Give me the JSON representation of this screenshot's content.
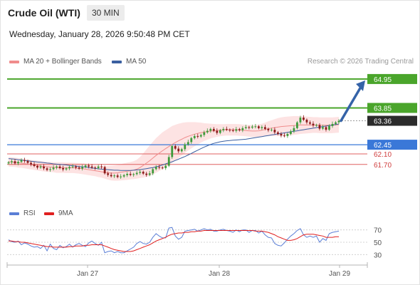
{
  "header": {
    "instrument": "Crude Oil (WTI)",
    "interval": "30 MIN",
    "datetime": "Wednesday, January 28, 2026 9:50:48 PM CET"
  },
  "legend": {
    "ma20_label": "MA 20 + Bollinger Bands",
    "ma50_label": "MA 50",
    "ma20_color": "#f08c8c",
    "ma50_color": "#3a5fa0",
    "source": "Research © 2026 Trading Central"
  },
  "colors": {
    "up_candle": "#3d9a3a",
    "down_candle": "#8b1a1a",
    "bollinger_fill": "#fde3e3",
    "resistance": "#4aa52b",
    "support_blue": "#3a78d8",
    "support_red": "#e06060",
    "arrow": "#3563a8",
    "rsi": "#5b7fd6",
    "rsi_ma": "#e02020"
  },
  "chart_data": [
    {
      "type": "candlestick",
      "ylim": [
        60.5,
        65.3
      ],
      "x_ticks": [
        "Jan 27",
        "Jan 28",
        "Jan 29"
      ],
      "current_price": 63.36,
      "levels": [
        {
          "value": 64.95,
          "label": "64.95",
          "kind": "resistance"
        },
        {
          "value": 63.85,
          "label": "63.85",
          "kind": "resistance"
        },
        {
          "value": 63.36,
          "label": "63.36",
          "kind": "last"
        },
        {
          "value": 62.45,
          "label": "62.45",
          "kind": "support-blue"
        },
        {
          "value": 62.1,
          "label": "62.10",
          "kind": "support-red"
        },
        {
          "value": 61.7,
          "label": "61.70",
          "kind": "support-red"
        }
      ],
      "close": [
        61.78,
        61.82,
        61.74,
        61.8,
        61.86,
        61.83,
        61.76,
        61.7,
        61.64,
        61.58,
        61.62,
        61.55,
        61.49,
        61.52,
        61.58,
        61.62,
        61.56,
        61.51,
        61.55,
        61.6,
        61.62,
        61.58,
        61.54,
        61.6,
        61.66,
        61.62,
        61.58,
        61.56,
        61.62,
        61.6,
        61.36,
        61.3,
        61.25,
        61.28,
        61.22,
        61.24,
        61.29,
        61.34,
        61.3,
        61.33,
        61.38,
        61.42,
        61.35,
        61.3,
        61.36,
        61.52,
        61.6,
        61.58,
        61.56,
        61.65,
        61.98,
        62.4,
        62.3,
        62.2,
        62.28,
        62.46,
        62.55,
        62.7,
        62.78,
        62.76,
        62.82,
        62.92,
        62.98,
        63.05,
        62.98,
        62.9,
        63.0,
        63.05,
        63.02,
        63.0,
        62.98,
        63.04,
        63.0,
        63.08,
        63.12,
        63.1,
        63.14,
        63.15,
        63.08,
        63.12,
        63.05,
        63.0,
        63.02,
        62.92,
        62.86,
        62.8,
        62.78,
        62.86,
        62.96,
        63.08,
        63.3,
        63.48,
        63.4,
        63.3,
        63.25,
        63.18,
        63.2,
        63.06,
        63.12,
        63.02,
        63.16,
        63.24,
        63.3,
        63.36
      ],
      "ma20": [
        61.8,
        61.79,
        61.78,
        61.76,
        61.75,
        61.73,
        61.71,
        61.69,
        61.67,
        61.66,
        61.64,
        61.62,
        61.61,
        61.6,
        61.59,
        61.58,
        61.58,
        61.58,
        61.57,
        61.57,
        61.57,
        61.56,
        61.55,
        61.54,
        61.52,
        61.5,
        61.48,
        61.46,
        61.44,
        61.42,
        61.4,
        61.38,
        61.37,
        61.37,
        61.38,
        61.4,
        61.42,
        61.44,
        61.46,
        61.48,
        61.52,
        61.58,
        61.66,
        61.75,
        61.84,
        61.94,
        62.04,
        62.13,
        62.22,
        62.3,
        62.38,
        62.46,
        62.53,
        62.6,
        62.66,
        62.72,
        62.77,
        62.81,
        62.85,
        62.88,
        62.91,
        62.93,
        62.95,
        62.97,
        62.98,
        62.99,
        63.0,
        63.01,
        63.02,
        63.02,
        63.02,
        63.02,
        63.01,
        63.0,
        62.99,
        62.98,
        62.97,
        62.97,
        62.98,
        63.0,
        63.03,
        63.06,
        63.08,
        63.1,
        63.12,
        63.14,
        63.15,
        63.16,
        63.17,
        63.18,
        63.19,
        63.2,
        63.2,
        63.2,
        63.2,
        63.2,
        63.2,
        63.19,
        63.19,
        63.19,
        63.19,
        63.19,
        63.2,
        63.21
      ],
      "ma50": [
        61.92,
        61.91,
        61.9,
        61.88,
        61.87,
        61.85,
        61.84,
        61.82,
        61.81,
        61.79,
        61.78,
        61.77,
        61.75,
        61.74,
        61.72,
        61.71,
        61.7,
        61.69,
        61.68,
        61.66,
        61.65,
        61.64,
        61.62,
        61.61,
        61.6,
        61.58,
        61.56,
        61.55,
        61.53,
        61.52,
        61.51,
        61.5,
        61.49,
        61.48,
        61.48,
        61.47,
        61.47,
        61.47,
        61.47,
        61.48,
        61.49,
        61.5,
        61.52,
        61.54,
        61.56,
        61.58,
        61.61,
        61.64,
        61.68,
        61.72,
        61.76,
        61.8,
        61.85,
        61.9,
        61.95,
        62.0,
        62.06,
        62.12,
        62.18,
        62.24,
        62.3,
        62.36,
        62.41,
        62.46,
        62.5,
        62.53,
        62.56,
        62.58,
        62.6,
        62.61,
        62.62,
        62.63,
        62.64,
        62.65,
        62.66,
        62.68,
        62.7,
        62.72,
        62.74,
        62.76,
        62.78,
        62.8,
        62.82,
        62.84,
        62.86,
        62.88,
        62.9,
        62.92,
        62.94,
        62.96,
        62.98,
        63.0,
        63.02,
        63.04,
        63.06,
        63.08,
        63.1,
        63.12,
        63.14,
        63.16,
        63.18,
        63.2,
        63.22,
        63.24
      ],
      "band_width": [
        0.18,
        0.18,
        0.18,
        0.18,
        0.18,
        0.18,
        0.18,
        0.18,
        0.18,
        0.19,
        0.19,
        0.19,
        0.19,
        0.19,
        0.19,
        0.2,
        0.2,
        0.2,
        0.2,
        0.2,
        0.2,
        0.2,
        0.2,
        0.21,
        0.21,
        0.21,
        0.21,
        0.21,
        0.22,
        0.22,
        0.24,
        0.26,
        0.28,
        0.29,
        0.3,
        0.31,
        0.32,
        0.33,
        0.33,
        0.34,
        0.36,
        0.4,
        0.46,
        0.52,
        0.58,
        0.62,
        0.66,
        0.68,
        0.7,
        0.7,
        0.7,
        0.7,
        0.68,
        0.65,
        0.62,
        0.58,
        0.54,
        0.5,
        0.46,
        0.42,
        0.38,
        0.34,
        0.31,
        0.28,
        0.26,
        0.24,
        0.23,
        0.22,
        0.22,
        0.22,
        0.22,
        0.22,
        0.22,
        0.22,
        0.22,
        0.22,
        0.23,
        0.23,
        0.24,
        0.25,
        0.26,
        0.28,
        0.3,
        0.32,
        0.34,
        0.35,
        0.36,
        0.36,
        0.36,
        0.36,
        0.35,
        0.34,
        0.33,
        0.32,
        0.31,
        0.3,
        0.3,
        0.3,
        0.3,
        0.3,
        0.3,
        0.3,
        0.3,
        0.3
      ]
    },
    {
      "type": "line",
      "title": "",
      "series": [
        {
          "name": "RSI",
          "values": [
            54,
            51,
            50,
            52,
            46,
            49,
            47,
            44,
            42,
            43,
            40,
            45,
            36,
            47,
            40,
            38,
            45,
            41,
            43,
            47,
            42,
            46,
            48,
            45,
            43,
            49,
            52,
            48,
            45,
            50,
            33,
            35,
            36,
            33,
            35,
            33,
            33,
            36,
            39,
            42,
            48,
            51,
            48,
            47,
            50,
            58,
            64,
            60,
            57,
            57,
            73,
            74,
            60,
            55,
            58,
            68,
            69,
            70,
            71,
            68,
            70,
            72,
            70,
            71,
            68,
            68,
            70,
            71,
            69,
            68,
            66,
            70,
            67,
            70,
            70,
            66,
            69,
            69,
            65,
            68,
            62,
            58,
            57,
            48,
            45,
            44,
            49,
            55,
            60,
            64,
            69,
            72,
            62,
            58,
            60,
            58,
            60,
            50,
            56,
            53,
            64,
            66,
            67,
            68
          ]
        },
        {
          "name": "9MA",
          "values": [
            52,
            52,
            51,
            51,
            50,
            50,
            49,
            48,
            47,
            46,
            45,
            44,
            43,
            43,
            42,
            42,
            42,
            42,
            42,
            43,
            43,
            44,
            44,
            44,
            45,
            45,
            46,
            46,
            46,
            46,
            44,
            42,
            40,
            38,
            37,
            36,
            35,
            35,
            35,
            36,
            38,
            40,
            42,
            44,
            46,
            49,
            52,
            54,
            56,
            58,
            61,
            63,
            64,
            65,
            65,
            66,
            66,
            67,
            67,
            68,
            68,
            69,
            69,
            69,
            69,
            69,
            69,
            69,
            69,
            69,
            69,
            69,
            69,
            69,
            69,
            69,
            69,
            68,
            68,
            68,
            67,
            66,
            64,
            62,
            59,
            57,
            55,
            53,
            53,
            54,
            56,
            59,
            62,
            63,
            63,
            63,
            62,
            61,
            60,
            58,
            58,
            58,
            59,
            59
          ]
        }
      ],
      "ylim": [
        20,
        80
      ],
      "y_ticks": [
        70,
        50,
        30
      ]
    }
  ]
}
